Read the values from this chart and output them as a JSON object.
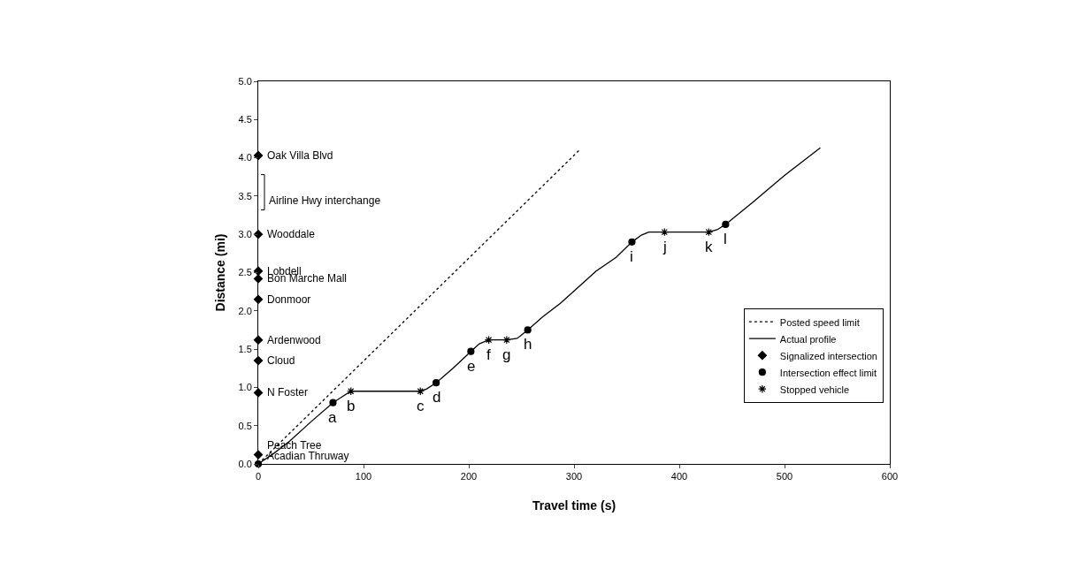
{
  "chart_data": {
    "type": "line",
    "xlabel": "Travel time (s)",
    "ylabel": "Distance (mi)",
    "xlim": [
      0,
      600
    ],
    "xticks": [
      0,
      100,
      200,
      300,
      400,
      500,
      600
    ],
    "ylim": [
      0,
      5
    ],
    "yticks": [
      {
        "value": 0,
        "label": "0.0"
      },
      {
        "value": 0.5,
        "label": "0.5"
      },
      {
        "value": 1,
        "label": "1.0"
      },
      {
        "value": 1.5,
        "label": "1.5"
      },
      {
        "value": 2,
        "label": "2.0"
      },
      {
        "value": 2.5,
        "label": "2.5"
      },
      {
        "value": 3,
        "label": "3.0"
      },
      {
        "value": 3.5,
        "label": "3.5"
      },
      {
        "value": 4,
        "label": "4.0"
      },
      {
        "value": 4.5,
        "label": "4.5"
      },
      {
        "value": 5,
        "label": "5.0"
      }
    ],
    "grid": false,
    "legend": "bottom right",
    "series": [
      {
        "name": "Posted speed limit",
        "color": "#000000",
        "line_style": "dotted",
        "marker": "none",
        "x": [
          0,
          305
        ],
        "values": [
          0,
          4.1
        ]
      },
      {
        "name": "Actual profile",
        "color": "#000000",
        "line_style": "solid",
        "marker": "none",
        "x": [
          0,
          15,
          30,
          50,
          71,
          80,
          88,
          120,
          154,
          160,
          169,
          185,
          202,
          210,
          219,
          228,
          236,
          246,
          256,
          270,
          287,
          305,
          321,
          340,
          355,
          364,
          371,
          386,
          410,
          428,
          436,
          444,
          470,
          500,
          534
        ],
        "values": [
          0,
          0.14,
          0.3,
          0.55,
          0.8,
          0.88,
          0.95,
          0.95,
          0.95,
          0.98,
          1.06,
          1.25,
          1.47,
          1.57,
          1.62,
          1.62,
          1.62,
          1.64,
          1.75,
          1.92,
          2.1,
          2.32,
          2.52,
          2.7,
          2.9,
          2.99,
          3.03,
          3.03,
          3.03,
          3.03,
          3.06,
          3.13,
          3.42,
          3.77,
          4.13
        ]
      },
      {
        "name": "Signalized intersection",
        "type": "scatter",
        "color": "#000000",
        "marker": "diamond",
        "x": [
          0,
          0,
          0,
          0,
          0,
          0,
          0,
          0,
          0
        ],
        "values": [
          4.03,
          3.0,
          2.52,
          2.42,
          2.15,
          1.62,
          1.35,
          0.93,
          0.12
        ]
      },
      {
        "name": "Intersection effect limit",
        "type": "scatter",
        "color": "#000000",
        "marker": "circle",
        "x": [
          0,
          71,
          169,
          202,
          256,
          355,
          444
        ],
        "values": [
          0,
          0.8,
          1.06,
          1.47,
          1.75,
          2.9,
          3.13
        ]
      },
      {
        "name": "Stopped vehicle",
        "type": "scatter",
        "color": "#000000",
        "marker": "cross",
        "x": [
          88,
          154,
          219,
          236,
          386,
          428
        ],
        "values": [
          0.95,
          0.95,
          1.62,
          1.62,
          3.03,
          3.03
        ]
      }
    ],
    "annotations": [
      "Airline Hwy interchange",
      {
        "text": "Oak Villa Blvd",
        "x": 0,
        "y": 4.03
      },
      {
        "text": "Wooddale",
        "x": 0,
        "y": 3.0
      },
      {
        "text": "Lobdell",
        "x": 0,
        "y": 2.52
      },
      {
        "text": "Bon Marche Mall",
        "x": 0,
        "y": 2.42
      },
      {
        "text": "Donmoor",
        "x": 0,
        "y": 2.15
      },
      {
        "text": "Ardenwood",
        "x": 0,
        "y": 1.62
      },
      {
        "text": "Cloud",
        "x": 0,
        "y": 1.35
      },
      {
        "text": "N Foster",
        "x": 0,
        "y": 0.93
      },
      {
        "text": "Peach Tree",
        "x": 0,
        "y": 0.12
      },
      {
        "text": "Acadian Thruway",
        "x": 0,
        "y": 0.12
      },
      {
        "text": "a",
        "x": 71,
        "y": 0.8
      },
      {
        "text": "b",
        "x": 88,
        "y": 0.95
      },
      {
        "text": "c",
        "x": 154,
        "y": 0.95
      },
      {
        "text": "d",
        "x": 169,
        "y": 1.06
      },
      {
        "text": "e",
        "x": 202,
        "y": 1.47
      },
      {
        "text": "f",
        "x": 219,
        "y": 1.62
      },
      {
        "text": "g",
        "x": 236,
        "y": 1.62
      },
      {
        "text": "h",
        "x": 256,
        "y": 1.75
      },
      {
        "text": "i",
        "x": 355,
        "y": 2.9
      },
      {
        "text": "j",
        "x": 386,
        "y": 3.03
      },
      {
        "text": "k",
        "x": 428,
        "y": 3.03
      },
      {
        "text": "l",
        "x": 444,
        "y": 3.13
      }
    ]
  }
}
